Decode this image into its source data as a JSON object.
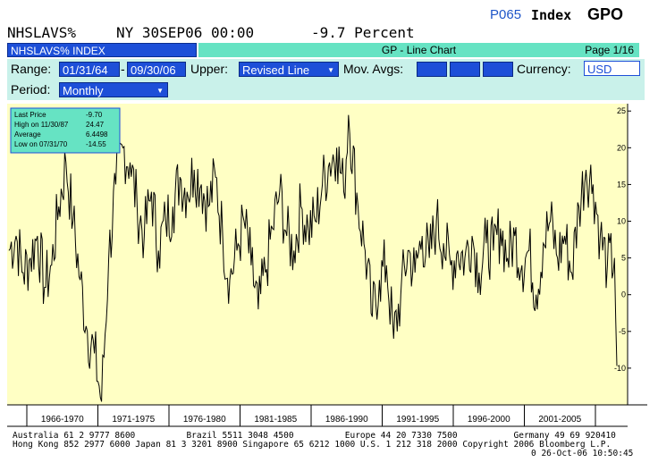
{
  "header": {
    "ticker": "NHSLAVS%",
    "datetime": "NY 30SEP06 00:00",
    "last_value": "-9.7 Percent",
    "page_code": "P065",
    "security_type": "Index",
    "function": "GPO"
  },
  "security_bar": {
    "security_name": "NHSLAVS% INDEX",
    "title": "GP - Line Chart",
    "page": "Page 1/16"
  },
  "controls": {
    "range_label": "Range:",
    "range_start": "01/31/64",
    "range_sep": "-",
    "range_end": "09/30/06",
    "upper_label": "Upper:",
    "upper_value": "Revised Line",
    "mov_avgs_label": "Mov. Avgs:",
    "currency_label": "Currency:",
    "currency_value": "USD",
    "period_label": "Period:",
    "period_value": "Monthly"
  },
  "stats_box": {
    "rows": [
      {
        "label": "Last Price",
        "value": "-9.70"
      },
      {
        "label": "High on  11/30/87",
        "value": "24.47"
      },
      {
        "label": "Average",
        "value": "6.4498"
      },
      {
        "label": "Low on  07/31/70",
        "value": "-14.55"
      }
    ]
  },
  "colors": {
    "plot_bg": "#ffffc4",
    "series_line": "#000000",
    "stats_bg": "#66e3c3",
    "field_blue": "#1d4fd8",
    "panel_bg": "#c9f1ea"
  },
  "chart_data": {
    "type": "line",
    "title": "",
    "xlabel": "",
    "ylabel": "",
    "x_range": [
      "1964-01",
      "2006-09"
    ],
    "ylim": [
      -15,
      26
    ],
    "yticks": [
      -10,
      -5,
      0,
      5,
      10,
      15,
      20,
      25
    ],
    "x_tick_labels": [
      "1966-1970",
      "1971-1975",
      "1976-1980",
      "1981-1985",
      "1986-1990",
      "1991-1995",
      "1996-2000",
      "2001-2005"
    ],
    "grid": false,
    "series": [
      {
        "name": "NHSLAVS%",
        "x": [
          "1964-01",
          "1964-07",
          "1965-01",
          "1965-07",
          "1966-01",
          "1966-07",
          "1967-01",
          "1967-07",
          "1968-01",
          "1968-07",
          "1969-01",
          "1969-07",
          "1970-01",
          "1970-07",
          "1971-01",
          "1971-07",
          "1972-01",
          "1972-07",
          "1973-01",
          "1973-07",
          "1974-01",
          "1974-07",
          "1975-01",
          "1975-07",
          "1976-01",
          "1976-07",
          "1977-01",
          "1977-07",
          "1978-01",
          "1978-07",
          "1979-01",
          "1979-07",
          "1980-01",
          "1980-07",
          "1981-01",
          "1981-07",
          "1982-01",
          "1982-07",
          "1983-01",
          "1983-07",
          "1984-01",
          "1984-07",
          "1985-01",
          "1985-07",
          "1986-01",
          "1986-07",
          "1987-01",
          "1987-07",
          "1987-11",
          "1988-07",
          "1989-01",
          "1989-07",
          "1990-01",
          "1990-07",
          "1991-01",
          "1991-07",
          "1992-01",
          "1992-07",
          "1993-01",
          "1993-07",
          "1994-01",
          "1994-07",
          "1995-01",
          "1995-07",
          "1996-01",
          "1996-07",
          "1997-01",
          "1997-07",
          "1998-01",
          "1998-07",
          "1999-01",
          "1999-07",
          "2000-01",
          "2000-07",
          "2001-01",
          "2001-07",
          "2002-01",
          "2002-07",
          "2003-01",
          "2003-07",
          "2004-01",
          "2004-07",
          "2005-01",
          "2005-07",
          "2006-01",
          "2006-07",
          "2006-09"
        ],
        "values": [
          6,
          8,
          3,
          5,
          8,
          1,
          4,
          12,
          18,
          10,
          2,
          -5,
          -8,
          -14.55,
          5,
          15,
          20,
          18,
          12,
          8,
          14,
          6,
          10,
          12,
          16,
          14,
          17,
          15,
          12,
          16,
          8,
          2,
          6,
          10,
          4,
          -2,
          3,
          9,
          14,
          8,
          6,
          12,
          9,
          10,
          15,
          18,
          20,
          14,
          24.47,
          12,
          6,
          -3,
          2,
          4,
          -6,
          0,
          6,
          3,
          8,
          5,
          10,
          7,
          4,
          6,
          5,
          8,
          3,
          7,
          6,
          9,
          5,
          8,
          4,
          6,
          0,
          7,
          10,
          5,
          8,
          3,
          12,
          17,
          15,
          8,
          4,
          5,
          -9.7
        ]
      }
    ]
  },
  "footer": {
    "line1": "Australia 61 2 9777 8600          Brazil 5511 3048 4500          Europe 44 20 7330 7500           Germany 49 69 920410",
    "line2": "Hong Kong 852 2977 6000 Japan 81 3 3201 8900 Singapore 65 6212 1000 U.S. 1 212 318 2000 Copyright 2006 Bloomberg L.P.",
    "line3": "0 26-Oct-06 10:50:45"
  }
}
